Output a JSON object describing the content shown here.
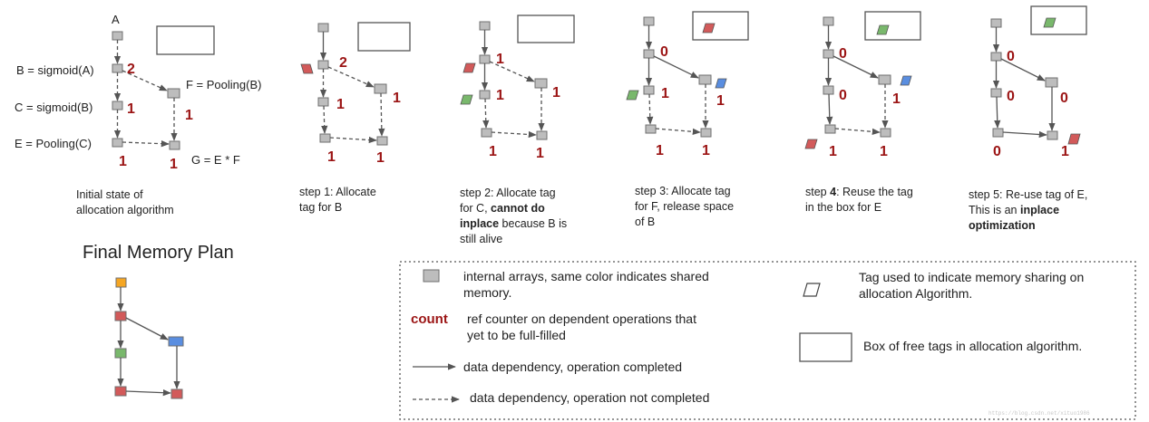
{
  "colors": {
    "node_fill": "#bdbdbd",
    "node_stroke": "#6f6f6f",
    "count_color": "#9b1414",
    "tag_red": "#d25a5a",
    "tag_green": "#79b86c",
    "tag_blue": "#5a8ee0",
    "orange": "#f5a623"
  },
  "initial": {
    "label_a": "A",
    "label_b": "B = sigmoid(A)",
    "label_c": "C = sigmoid(B)",
    "label_e": "E = Pooling(C)",
    "label_f": "F = Pooling(B)",
    "label_g": "G = E * F",
    "count_b": "2",
    "count_c": "1",
    "count_f": "1",
    "count_e": "1",
    "count_g": "1",
    "caption_1": "Initial state of",
    "caption_2": "allocation algorithm"
  },
  "step1": {
    "count_b": "2",
    "count_c": "1",
    "count_f": "1",
    "count_e": "1",
    "count_g": "1",
    "caption_1": "step 1: Allocate",
    "caption_2": "tag for B"
  },
  "step2": {
    "count_b": "1",
    "count_c": "1",
    "count_f": "1",
    "count_e": "1",
    "count_g": "1",
    "caption_1": "step 2: Allocate tag",
    "caption_2a": "for C, ",
    "caption_2b": "cannot do",
    "caption_3a": "inplace",
    "caption_3b": " because B is",
    "caption_4": "still alive"
  },
  "step3": {
    "count_b": "0",
    "count_c": "1",
    "count_f": "1",
    "count_e": "1",
    "count_g": "1",
    "caption_1": "step 3: Allocate tag",
    "caption_2": "for F, release space",
    "caption_3": "of B"
  },
  "step4": {
    "count_b": "0",
    "count_c": "0",
    "count_f": "1",
    "count_e": "1",
    "count_g": "1",
    "caption_1a": "step ",
    "caption_1b": "4",
    "caption_1c": ": Reuse the tag",
    "caption_2": "in the box for E"
  },
  "step5": {
    "count_b": "0",
    "count_c": "0",
    "count_f": "0",
    "count_e": "0",
    "count_g": "1",
    "caption_1": "step 5: Re-use tag of E,",
    "caption_2a": "This is an ",
    "caption_2b": "inplace",
    "caption_3": "optimization"
  },
  "final": {
    "title": "Final Memory Plan"
  },
  "legend": {
    "arrays_1": "internal arrays, same color indicates shared",
    "arrays_2": "memory.",
    "count_word": "count",
    "count_desc_1": "ref counter on dependent operations that",
    "count_desc_2": "yet to be full-filled",
    "solid_desc": "data dependency, operation completed",
    "dashed_desc": "data dependency, operation not completed",
    "tag_desc_1": "Tag used to indicate memory sharing on",
    "tag_desc_2": "allocation Algorithm.",
    "box_desc": "Box of free tags in allocation algorithm."
  },
  "watermark": "https://blog.csdn.net/xituo1986"
}
